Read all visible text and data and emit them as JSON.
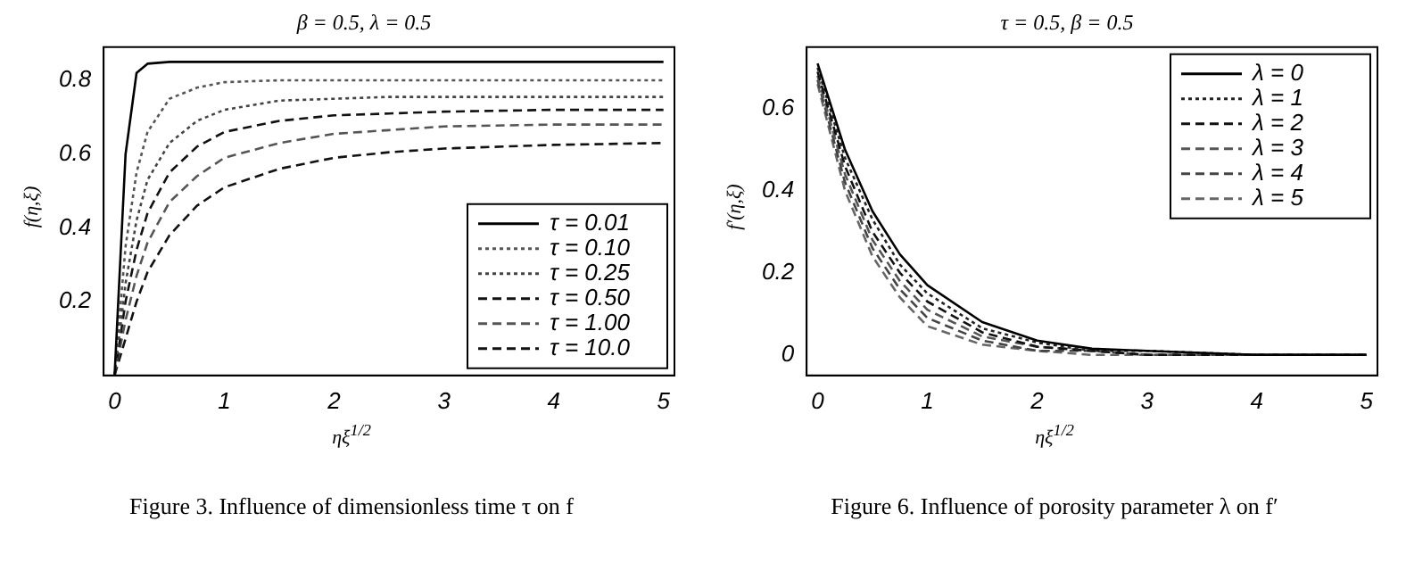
{
  "chart_data": [
    {
      "type": "line",
      "title": "β = 0.5, λ = 0.5",
      "xlabel": "ηξ$^{1/2}$",
      "ylabel": "f(η,ξ)",
      "annotations": [
        "Figure 3. Influence of dimensionless time τ on f"
      ],
      "x": [
        0,
        0.1,
        0.2,
        0.3,
        0.5,
        0.75,
        1,
        1.5,
        2,
        2.5,
        3,
        4,
        5
      ],
      "series": [
        {
          "name": "τ = 0.01",
          "color": "#000000",
          "line_style": "solid",
          "values": [
            0,
            0.6,
            0.82,
            0.845,
            0.85,
            0.85,
            0.85,
            0.85,
            0.85,
            0.85,
            0.85,
            0.85,
            0.85
          ]
        },
        {
          "name": "τ = 0.10",
          "color": "#555555",
          "line_style": "dotted",
          "values": [
            0,
            0.35,
            0.55,
            0.66,
            0.75,
            0.78,
            0.795,
            0.8,
            0.8,
            0.8,
            0.8,
            0.8,
            0.8
          ]
        },
        {
          "name": "τ = 0.25",
          "color": "#444444",
          "line_style": "dotted",
          "values": [
            0,
            0.25,
            0.42,
            0.53,
            0.63,
            0.69,
            0.72,
            0.745,
            0.75,
            0.755,
            0.755,
            0.755,
            0.755
          ]
        },
        {
          "name": "τ = 0.50",
          "color": "#111111",
          "line_style": "dashed",
          "values": [
            0,
            0.2,
            0.34,
            0.44,
            0.55,
            0.62,
            0.66,
            0.69,
            0.705,
            0.71,
            0.715,
            0.72,
            0.72
          ]
        },
        {
          "name": "τ = 1.00",
          "color": "#555555",
          "line_style": "dashed",
          "values": [
            0,
            0.15,
            0.27,
            0.36,
            0.47,
            0.54,
            0.59,
            0.63,
            0.655,
            0.665,
            0.675,
            0.68,
            0.68
          ]
        },
        {
          "name": "τ = 10.0",
          "color": "#111111",
          "line_style": "dashed",
          "values": [
            0,
            0.1,
            0.2,
            0.28,
            0.38,
            0.46,
            0.51,
            0.56,
            0.59,
            0.605,
            0.615,
            0.625,
            0.63
          ]
        }
      ],
      "xlim": [
        -0.1,
        5.1
      ],
      "xticks": [
        0,
        1,
        2,
        3,
        4,
        5
      ],
      "ylim": [
        0,
        0.89
      ],
      "yticks": [
        0.2,
        0.4,
        0.6,
        0.8
      ],
      "legend": "bottom right",
      "grid": false
    },
    {
      "type": "line",
      "title": "τ = 0.5, β = 0.5",
      "xlabel": "ηξ$^{1/2}$",
      "ylabel": "f′(η,ξ)",
      "annotations": [
        "Figure 6. Influence of porosity parameter λ on f′"
      ],
      "x": [
        0,
        0.25,
        0.5,
        0.75,
        1,
        1.5,
        2,
        2.5,
        3,
        4,
        5
      ],
      "series": [
        {
          "name": "λ = 0",
          "color": "#000000",
          "line_style": "solid",
          "values": [
            0.71,
            0.5,
            0.35,
            0.245,
            0.17,
            0.08,
            0.035,
            0.015,
            0.01,
            0,
            0
          ]
        },
        {
          "name": "λ = 1",
          "color": "#222222",
          "line_style": "dotted",
          "values": [
            0.7,
            0.48,
            0.33,
            0.22,
            0.15,
            0.065,
            0.03,
            0.01,
            0.01,
            0,
            0
          ]
        },
        {
          "name": "λ = 2",
          "color": "#111111",
          "line_style": "dashed",
          "values": [
            0.69,
            0.46,
            0.3,
            0.2,
            0.13,
            0.055,
            0.02,
            0.01,
            0,
            0,
            0
          ]
        },
        {
          "name": "λ = 3",
          "color": "#555555",
          "line_style": "dashed",
          "values": [
            0.68,
            0.44,
            0.28,
            0.18,
            0.11,
            0.045,
            0.02,
            0.01,
            0,
            0,
            0
          ]
        },
        {
          "name": "λ = 4",
          "color": "#444444",
          "line_style": "dashed",
          "values": [
            0.67,
            0.42,
            0.26,
            0.16,
            0.09,
            0.035,
            0.01,
            0.01,
            0,
            0,
            0
          ]
        },
        {
          "name": "λ = 5",
          "color": "#666666",
          "line_style": "dashed",
          "values": [
            0.66,
            0.4,
            0.24,
            0.14,
            0.07,
            0.025,
            0.01,
            0,
            0,
            0,
            0
          ]
        }
      ],
      "xlim": [
        -0.1,
        5.1
      ],
      "xticks": [
        0,
        1,
        2,
        3,
        4,
        5
      ],
      "ylim": [
        -0.05,
        0.75
      ],
      "yticks": [
        0,
        0.2,
        0.4,
        0.6
      ],
      "legend": "top right",
      "grid": false
    }
  ]
}
